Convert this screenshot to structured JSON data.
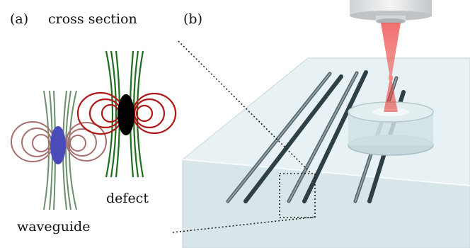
{
  "panel_a": {
    "label": "(a)",
    "title": "cross section",
    "labels": {
      "waveguide": "waveguide",
      "defect": "defect"
    }
  },
  "panel_b": {
    "label": "(b)"
  },
  "colors": {
    "waveguide_core": "#4a4ab8",
    "waveguide_field_lines": "#6a8f6a",
    "waveguide_loops": "#a86e6e",
    "defect_core": "#000000",
    "defect_field_lines": "#1f6f1f",
    "defect_loops": "#b01818",
    "glass": "#dce9ec",
    "laser": "#e8453c"
  }
}
